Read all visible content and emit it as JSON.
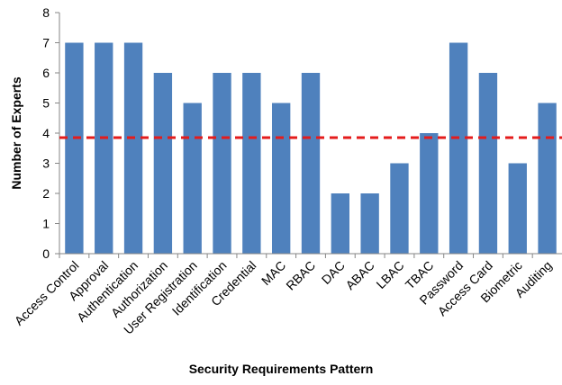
{
  "chart_data": {
    "type": "bar",
    "categories": [
      "Access Control",
      "Approval",
      "Authentication",
      "Authorization",
      "User Registration",
      "Identification",
      "Credential",
      "MAC",
      "RBAC",
      "DAC",
      "ABAC",
      "LBAC",
      "TBAC",
      "Password",
      "Access Card",
      "Biometric",
      "Auditing"
    ],
    "values": [
      7,
      7,
      7,
      6,
      5,
      6,
      6,
      5,
      6,
      2,
      2,
      3,
      4,
      7,
      6,
      3,
      5
    ],
    "xlabel": "Security Requirements  Pattern",
    "ylabel": "Number of Experts",
    "ylim": [
      0,
      8
    ],
    "yticks": [
      0,
      1,
      2,
      3,
      4,
      5,
      6,
      7,
      8
    ],
    "grid": false,
    "reference_line": {
      "value": 3.85,
      "style": "dashed"
    },
    "colors": {
      "bar": "#4f81bd",
      "reference_line": "#e41c1c",
      "axis": "#868686"
    }
  }
}
